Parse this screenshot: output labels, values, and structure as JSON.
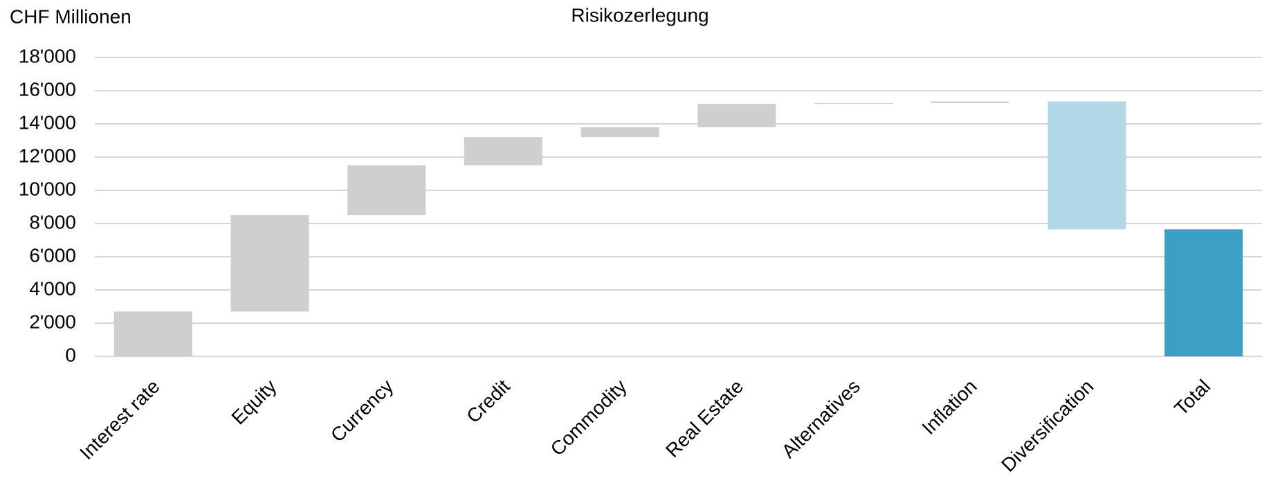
{
  "chart_data": {
    "type": "waterfall",
    "title": "Risikozerlegung",
    "y_label": "CHF Millionen",
    "categories": [
      "Interest rate",
      "Equity",
      "Currency",
      "Credit",
      "Commodity",
      "Real Estate",
      "Alternatives",
      "Inflation",
      "Diversification",
      "Total"
    ],
    "values": [
      2700,
      5800,
      3000,
      1700,
      600,
      1400,
      50,
      100,
      -7700,
      7650
    ],
    "is_total": [
      false,
      false,
      false,
      false,
      false,
      false,
      false,
      false,
      false,
      true
    ],
    "colors": [
      "#d0cfcf",
      "#d0cfcf",
      "#d0cfcf",
      "#d0cfcf",
      "#d0cfcf",
      "#d0cfcf",
      "#d0cfcf",
      "#d0cfcf",
      "#b0d8e7",
      "#3c9fc6"
    ],
    "ylim": [
      0,
      18000
    ],
    "yticks": [
      0,
      {
        "value": 2000,
        "label": "2'000"
      },
      {
        "value": 4000,
        "label": "4'000"
      },
      {
        "value": 6000,
        "label": "6'000"
      },
      {
        "value": 8000,
        "label": "8'000"
      },
      {
        "value": 10000,
        "label": "10'000"
      },
      {
        "value": 12000,
        "label": "12'000"
      },
      {
        "value": 14000,
        "label": "14'000"
      },
      {
        "value": 16000,
        "label": "16'000"
      },
      {
        "value": 18000,
        "label": "18'000"
      }
    ],
    "grid": true
  }
}
